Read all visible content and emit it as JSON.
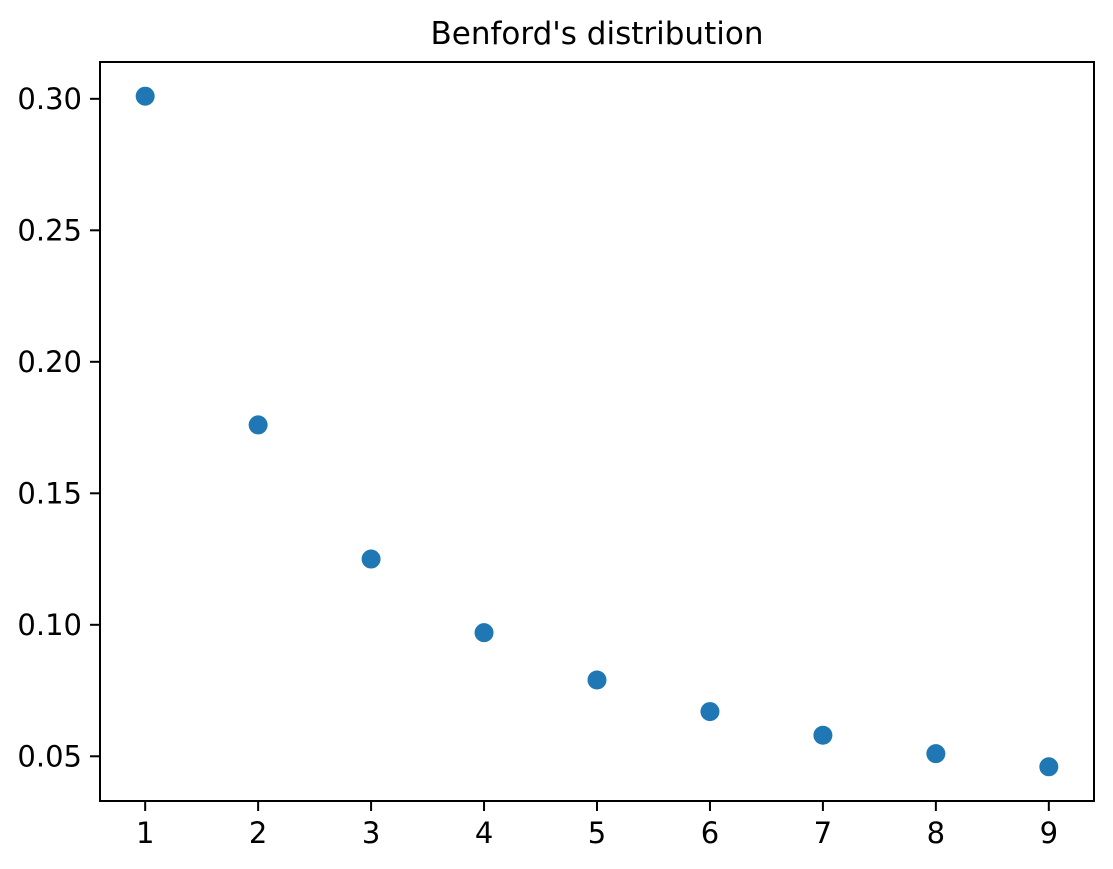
{
  "chart_data": {
    "type": "scatter",
    "title": "Benford's distribution",
    "xlabel": "",
    "ylabel": "",
    "x": [
      1,
      2,
      3,
      4,
      5,
      6,
      7,
      8,
      9
    ],
    "values": [
      0.301,
      0.176,
      0.125,
      0.097,
      0.079,
      0.067,
      0.058,
      0.051,
      0.046
    ],
    "x_tick_labels": [
      "1",
      "2",
      "3",
      "4",
      "5",
      "6",
      "7",
      "8",
      "9"
    ],
    "x_tick_values": [
      1,
      2,
      3,
      4,
      5,
      6,
      7,
      8,
      9
    ],
    "y_tick_labels": [
      "0.05",
      "0.10",
      "0.15",
      "0.20",
      "0.25",
      "0.30"
    ],
    "y_tick_values": [
      0.05,
      0.1,
      0.15,
      0.2,
      0.25,
      0.3
    ],
    "xlim": [
      0.6,
      9.4
    ],
    "ylim": [
      0.033,
      0.314
    ],
    "grid": false,
    "legend_position": "none",
    "marker_color": "#1f77b4",
    "marker_radius": 9.5,
    "axis_color": "#000000",
    "background_color": "#ffffff"
  }
}
